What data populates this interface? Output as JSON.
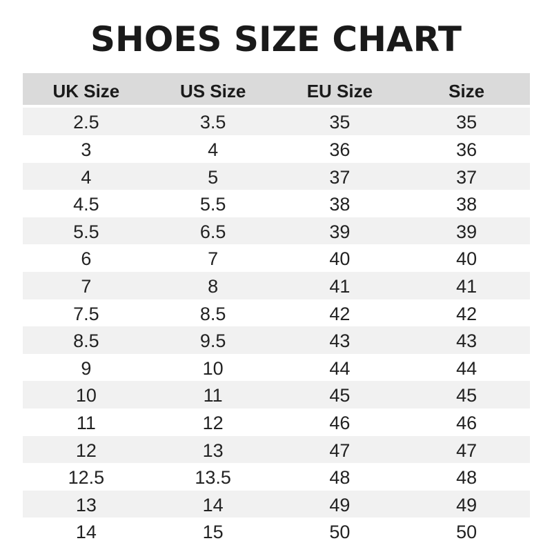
{
  "title": "SHOES SIZE CHART",
  "headers": [
    "UK Size",
    "US Size",
    "EU Size",
    "Size"
  ],
  "rows": [
    [
      "2.5",
      "3.5",
      "35",
      "35"
    ],
    [
      "3",
      "4",
      "36",
      "36"
    ],
    [
      "4",
      "5",
      "37",
      "37"
    ],
    [
      "4.5",
      "5.5",
      "38",
      "38"
    ],
    [
      "5.5",
      "6.5",
      "39",
      "39"
    ],
    [
      "6",
      "7",
      "40",
      "40"
    ],
    [
      "7",
      "8",
      "41",
      "41"
    ],
    [
      "7.5",
      "8.5",
      "42",
      "42"
    ],
    [
      "8.5",
      "9.5",
      "43",
      "43"
    ],
    [
      "9",
      "10",
      "44",
      "44"
    ],
    [
      "10",
      "11",
      "45",
      "45"
    ],
    [
      "11",
      "12",
      "46",
      "46"
    ],
    [
      "12",
      "13",
      "47",
      "47"
    ],
    [
      "12.5",
      "13.5",
      "48",
      "48"
    ],
    [
      "13",
      "14",
      "49",
      "49"
    ],
    [
      "14",
      "15",
      "50",
      "50"
    ]
  ],
  "colors": {
    "header_bg": "#dadada",
    "stripe_bg": "#f1f1f1",
    "text": "#1a1a1a"
  }
}
